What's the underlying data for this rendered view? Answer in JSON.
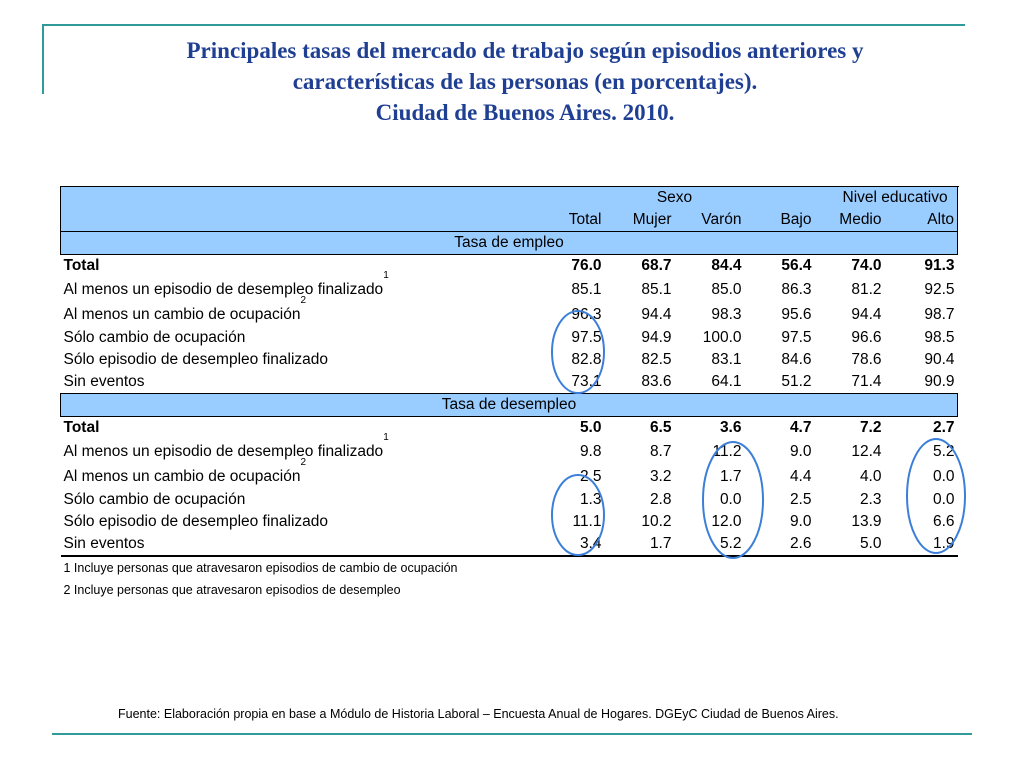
{
  "title": {
    "line1": "Principales tasas del mercado de trabajo según episodios anteriores y",
    "line2": "características de las personas (en porcentajes).",
    "line3": "Ciudad de Buenos Aires. 2010."
  },
  "header": {
    "group_sexo": "Sexo",
    "group_nivel": "Nivel educativo",
    "columns": [
      "Total",
      "Mujer",
      "Varón",
      "Bajo",
      "Medio",
      "Alto"
    ]
  },
  "sections": [
    {
      "title": "Tasa de empleo",
      "rows": [
        {
          "label": "Total",
          "sup": "",
          "values": [
            "76.0",
            "68.7",
            "84.4",
            "56.4",
            "74.0",
            "91.3"
          ]
        },
        {
          "label": "Al menos un episodio de desempleo finalizado",
          "sup": "1",
          "values": [
            "85.1",
            "85.1",
            "85.0",
            "86.3",
            "81.2",
            "92.5"
          ]
        },
        {
          "label": "Al menos un cambio de ocupación",
          "sup": "2",
          "values": [
            "96.3",
            "94.4",
            "98.3",
            "95.6",
            "94.4",
            "98.7"
          ]
        },
        {
          "label": "Sólo cambio de ocupación",
          "sup": "",
          "values": [
            "97.5",
            "94.9",
            "100.0",
            "97.5",
            "96.6",
            "98.5"
          ]
        },
        {
          "label": "Sólo episodio de desempleo finalizado",
          "sup": "",
          "values": [
            "82.8",
            "82.5",
            "83.1",
            "84.6",
            "78.6",
            "90.4"
          ]
        },
        {
          "label": "Sin eventos",
          "sup": "",
          "values": [
            "73.1",
            "83.6",
            "64.1",
            "51.2",
            "71.4",
            "90.9"
          ]
        }
      ]
    },
    {
      "title": "Tasa de desempleo",
      "rows": [
        {
          "label": "Total",
          "sup": "",
          "values": [
            "5.0",
            "6.5",
            "3.6",
            "4.7",
            "7.2",
            "2.7"
          ]
        },
        {
          "label": "Al menos un episodio de desempleo finalizado",
          "sup": "1",
          "values": [
            "9.8",
            "8.7",
            "11.2",
            "9.0",
            "12.4",
            "5.2"
          ]
        },
        {
          "label": "Al menos un cambio de ocupación",
          "sup": "2",
          "values": [
            "2.5",
            "3.2",
            "1.7",
            "4.4",
            "4.0",
            "0.0"
          ]
        },
        {
          "label": "Sólo cambio de ocupación",
          "sup": "",
          "values": [
            "1.3",
            "2.8",
            "0.0",
            "2.5",
            "2.3",
            "0.0"
          ]
        },
        {
          "label": "Sólo episodio de desempleo finalizado",
          "sup": "",
          "values": [
            "11.1",
            "10.2",
            "12.0",
            "9.0",
            "13.9",
            "6.6"
          ]
        },
        {
          "label": "Sin eventos",
          "sup": "",
          "values": [
            "3.4",
            "1.7",
            "5.2",
            "2.6",
            "5.0",
            "1.9"
          ]
        }
      ]
    }
  ],
  "footnotes": [
    "1 Incluye personas que atravesaron episodios de cambio de ocupación",
    "2 Incluye personas que atravesaron episodios de desempleo"
  ],
  "source": "Fuente: Elaboración propia en base a Módulo de Historia Laboral – Encuesta Anual de Hogares. DGEyC Ciudad de Buenos Aires.",
  "colors": {
    "title": "#1f3f93",
    "header_fill": "#99ccff",
    "frame": "#2f9a9a",
    "circle": "#3b7fd9"
  }
}
